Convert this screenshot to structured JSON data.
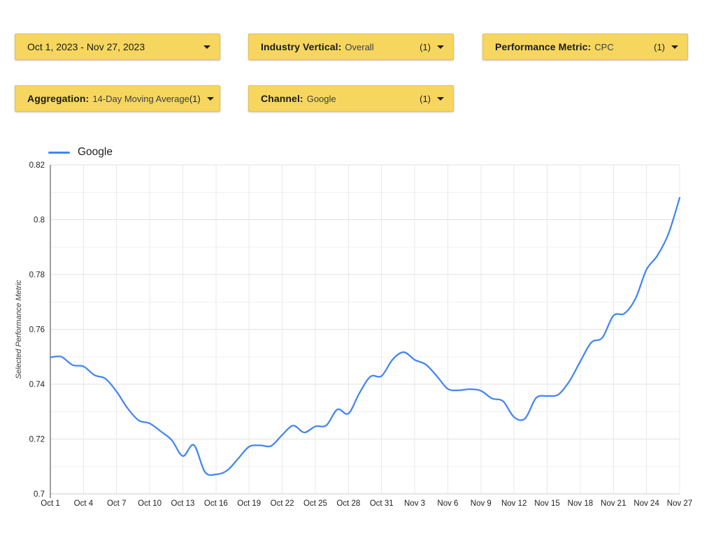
{
  "filters": {
    "date_range": {
      "text": "Oct 1, 2023 - Nov 27, 2023"
    },
    "industry_vertical": {
      "label": "Industry Vertical:",
      "value": "Overall",
      "count": "(1)"
    },
    "performance_metric": {
      "label": "Performance Metric:",
      "value": "CPC",
      "count": "(1)"
    },
    "aggregation": {
      "label": "Aggregation:",
      "value": "14-Day Moving Average",
      "count": "(1)"
    },
    "channel": {
      "label": "Channel:",
      "value": "Google",
      "count": "(1)"
    }
  },
  "colors": {
    "button_bg": "#f6d65f",
    "button_border": "#e4c14d",
    "series_line": "#4285f4",
    "grid_major": "#e2e2e2",
    "grid_minor": "#f0f0f0",
    "axis_dark": "#424242",
    "axis_bottom": "#cfcfcf"
  },
  "chart_data": {
    "type": "line",
    "title": "",
    "xlabel": "",
    "ylabel": "Selected Performance Metric",
    "ylim": [
      0.7,
      0.82
    ],
    "y_ticks": [
      0.7,
      0.72,
      0.74,
      0.76,
      0.78,
      0.8,
      0.82
    ],
    "y_tick_labels": [
      "0.7",
      "0.72",
      "0.74",
      "0.76",
      "0.78",
      "0.8",
      "0.82"
    ],
    "y_minor_ticks": [
      0.71,
      0.73,
      0.75,
      0.77,
      0.79,
      0.81
    ],
    "grid": true,
    "legend_position": "top-left",
    "x_tick_every": 3,
    "dates": [
      "Oct 1",
      "Oct 2",
      "Oct 3",
      "Oct 4",
      "Oct 5",
      "Oct 6",
      "Oct 7",
      "Oct 8",
      "Oct 9",
      "Oct 10",
      "Oct 11",
      "Oct 12",
      "Oct 13",
      "Oct 14",
      "Oct 15",
      "Oct 16",
      "Oct 17",
      "Oct 18",
      "Oct 19",
      "Oct 20",
      "Oct 21",
      "Oct 22",
      "Oct 23",
      "Oct 24",
      "Oct 25",
      "Oct 26",
      "Oct 27",
      "Oct 28",
      "Oct 29",
      "Oct 30",
      "Oct 31",
      "Nov 1",
      "Nov 2",
      "Nov 3",
      "Nov 4",
      "Nov 5",
      "Nov 6",
      "Nov 7",
      "Nov 8",
      "Nov 9",
      "Nov 10",
      "Nov 11",
      "Nov 12",
      "Nov 13",
      "Nov 14",
      "Nov 15",
      "Nov 16",
      "Nov 17",
      "Nov 18",
      "Nov 19",
      "Nov 20",
      "Nov 21",
      "Nov 22",
      "Nov 23",
      "Nov 24",
      "Nov 25",
      "Nov 26",
      "Nov 27"
    ],
    "series": [
      {
        "name": "Google",
        "color": "#4285f4",
        "values": [
          0.7498,
          0.75,
          0.747,
          0.7465,
          0.7433,
          0.742,
          0.7373,
          0.7312,
          0.7268,
          0.7257,
          0.7228,
          0.7196,
          0.7138,
          0.7178,
          0.708,
          0.7071,
          0.7085,
          0.7128,
          0.7172,
          0.7177,
          0.7175,
          0.7215,
          0.7249,
          0.7224,
          0.7246,
          0.725,
          0.7308,
          0.7293,
          0.7368,
          0.7428,
          0.743,
          0.749,
          0.7517,
          0.7489,
          0.7472,
          0.743,
          0.7383,
          0.7378,
          0.7382,
          0.7376,
          0.7348,
          0.7338,
          0.728,
          0.7275,
          0.735,
          0.7357,
          0.7362,
          0.741,
          0.7483,
          0.7552,
          0.757,
          0.765,
          0.7658,
          0.7712,
          0.7818,
          0.787,
          0.795,
          0.808
        ]
      }
    ]
  }
}
